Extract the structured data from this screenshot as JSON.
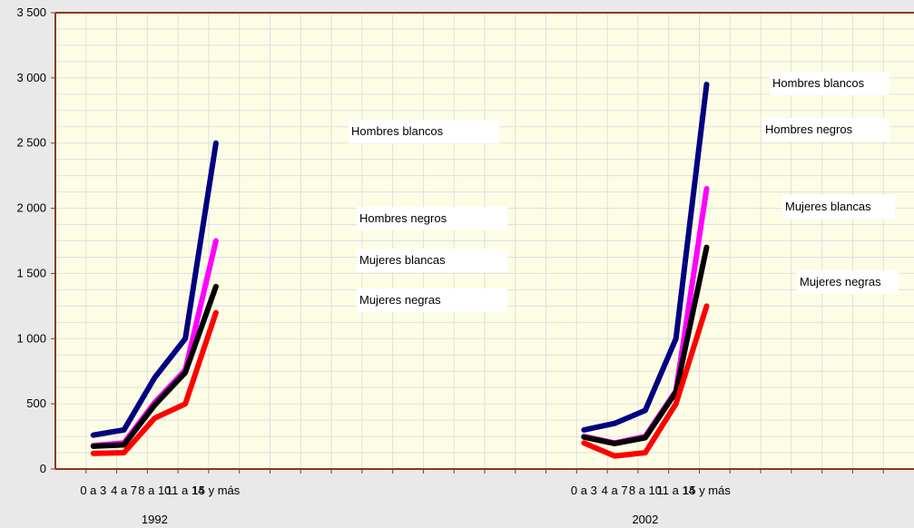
{
  "chart_data": {
    "type": "line",
    "ylim": [
      0,
      3500
    ],
    "yticks": [
      "0",
      "500",
      "1 000",
      "1 500",
      "2 000",
      "2 500",
      "3 000",
      "3 500"
    ],
    "ytick_values": [
      0,
      500,
      1000,
      1500,
      2000,
      2500,
      3000,
      3500
    ],
    "grid": true,
    "colors": {
      "plot_bg": "#fdfde6",
      "grid": "#dde0e0",
      "axis": "#8b3a1a",
      "page_bg": "#e9e9e9"
    },
    "panels": [
      {
        "group_label": "1992",
        "categories": [
          "0 a 3",
          "4 a 7",
          "8 a 10",
          "11 a 14",
          "15 y más"
        ],
        "series": [
          {
            "name": "Hombres blancos",
            "color": "#000080",
            "values": [
              260,
              300,
              700,
              1000,
              2500
            ]
          },
          {
            "name": "Hombres negros",
            "color": "#ff00ff",
            "values": [
              180,
              200,
              510,
              760,
              1750
            ]
          },
          {
            "name": "Mujeres blancas",
            "color": "#000000",
            "values": [
              175,
              185,
              490,
              740,
              1400
            ]
          },
          {
            "name": "Mujeres negras",
            "color": "#ff0000",
            "values": [
              120,
              125,
              390,
              500,
              1200
            ]
          }
        ]
      },
      {
        "group_label": "2002",
        "categories": [
          "0 a 3",
          "4 a 7",
          "8 a 10",
          "11 a 14",
          "15 y más"
        ],
        "series": [
          {
            "name": "Hombres blancos",
            "color": "#000080",
            "values": [
              300,
              350,
              450,
              1000,
              2950
            ]
          },
          {
            "name": "Hombres negros",
            "color": "#ff00ff",
            "values": [
              250,
              200,
              250,
              600,
              2150
            ]
          },
          {
            "name": "Mujeres blancas",
            "color": "#000000",
            "values": [
              245,
              195,
              240,
              590,
              1700
            ]
          },
          {
            "name": "Mujeres negras",
            "color": "#ff0000",
            "values": [
              200,
              100,
              125,
              500,
              1250
            ]
          }
        ]
      }
    ]
  }
}
